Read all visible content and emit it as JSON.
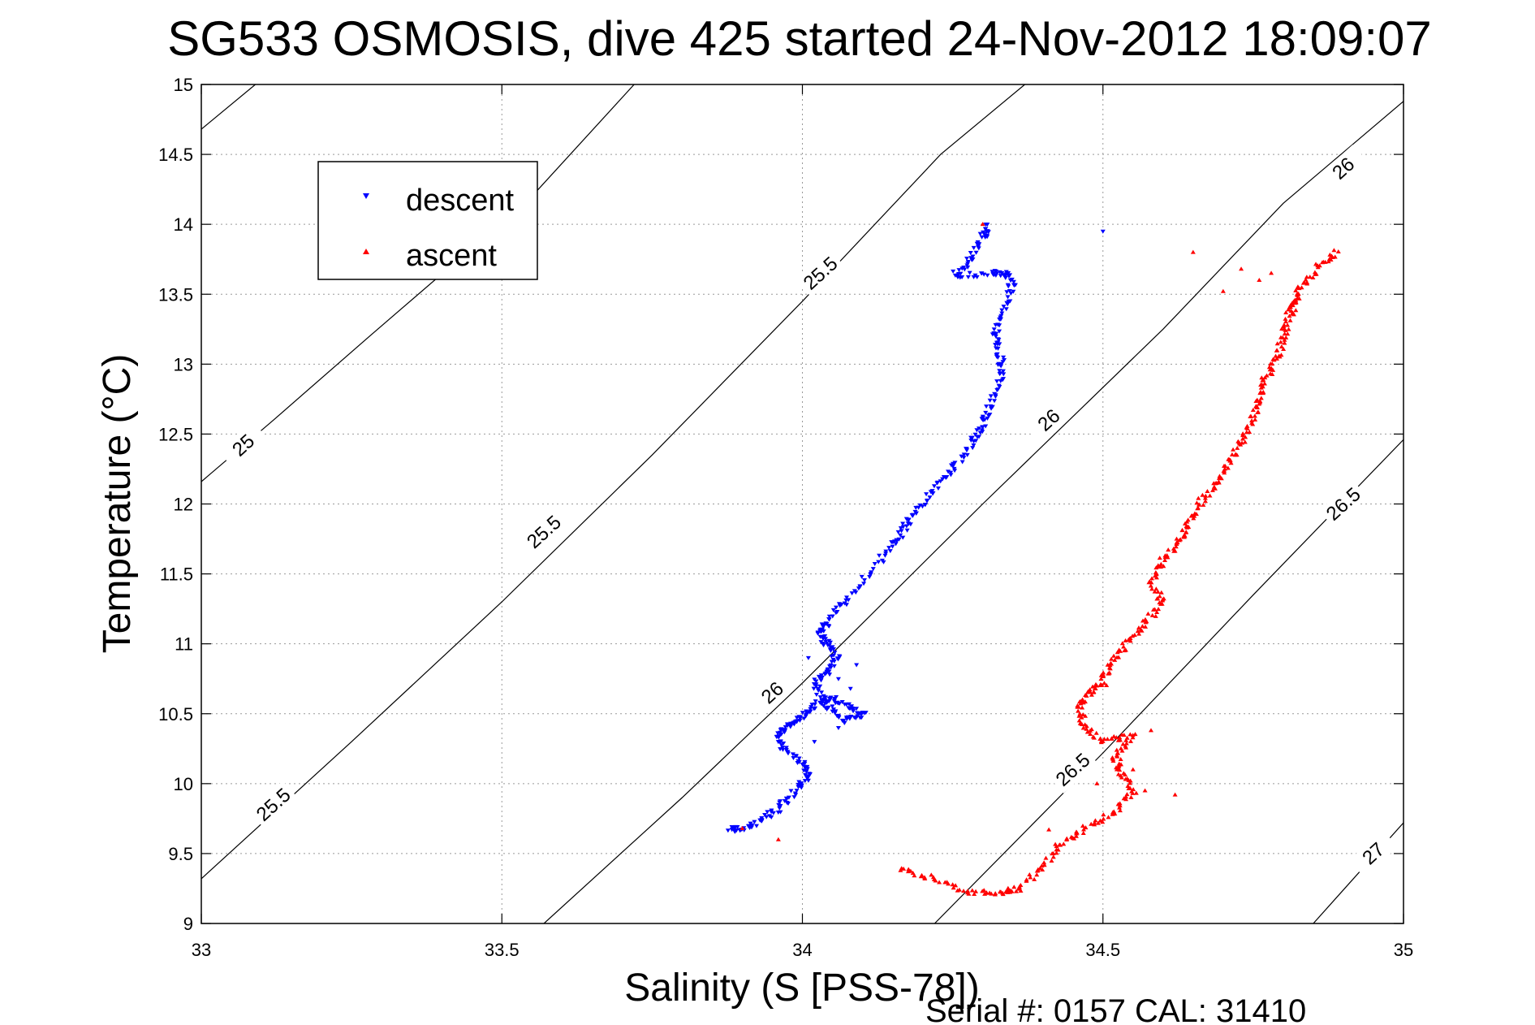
{
  "chart_data": {
    "type": "scatter",
    "title": "SG533 OSMOSIS, dive 425 started 24-Nov-2012 18:09:07",
    "xlabel": "Salinity (S [PSS-78])",
    "ylabel": "Temperature (°C)",
    "xlim": [
      33,
      35
    ],
    "ylim": [
      9,
      15
    ],
    "x_ticks": [
      "33",
      "33.5",
      "34",
      "34.5",
      "35"
    ],
    "y_ticks": [
      "9",
      "9.5",
      "10",
      "10.5",
      "11",
      "11.5",
      "12",
      "12.5",
      "13",
      "13.5",
      "14",
      "14.5",
      "15"
    ],
    "grid": true,
    "legend_position": "top-left",
    "footer": "Serial #: 0157  CAL: 31410",
    "density_contours": [
      {
        "level": "25",
        "points": [
          [
            33.0,
            14.68
          ],
          [
            33.09,
            15.0
          ]
        ],
        "labels": []
      },
      {
        "level": "25",
        "points": [
          [
            33.0,
            12.16
          ],
          [
            33.12,
            12.6
          ],
          [
            33.28,
            13.2
          ],
          [
            33.55,
            14.2
          ],
          [
            33.72,
            15.0
          ]
        ],
        "labels": [
          {
            "text": "25",
            "x": 33.07,
            "y": 12.42
          }
        ]
      },
      {
        "level": "25.5",
        "points": [
          [
            33.0,
            9.32
          ],
          [
            33.25,
            10.3
          ],
          [
            33.5,
            11.3
          ],
          [
            33.75,
            12.35
          ],
          [
            34.0,
            13.45
          ],
          [
            34.23,
            14.5
          ],
          [
            34.37,
            15.0
          ]
        ],
        "labels": [
          {
            "text": "25.5",
            "x": 33.12,
            "y": 9.85
          },
          {
            "text": "25.5",
            "x": 33.57,
            "y": 11.8
          },
          {
            "text": "25.5",
            "x": 34.03,
            "y": 13.65
          }
        ]
      },
      {
        "level": "26",
        "points": [
          [
            33.57,
            9.0
          ],
          [
            33.8,
            9.9
          ],
          [
            34.0,
            10.72
          ],
          [
            34.3,
            12.0
          ],
          [
            34.6,
            13.25
          ],
          [
            34.8,
            14.15
          ],
          [
            35.0,
            14.88
          ]
        ],
        "labels": [
          {
            "text": "26",
            "x": 33.95,
            "y": 10.65
          },
          {
            "text": "26",
            "x": 34.41,
            "y": 12.6
          },
          {
            "text": "26",
            "x": 34.9,
            "y": 14.4
          }
        ]
      },
      {
        "level": "26.5",
        "points": [
          [
            34.22,
            9.0
          ],
          [
            34.5,
            10.22
          ],
          [
            34.75,
            11.35
          ],
          [
            35.0,
            12.46
          ]
        ],
        "labels": [
          {
            "text": "26.5",
            "x": 34.45,
            "y": 10.1
          },
          {
            "text": "26.5",
            "x": 34.9,
            "y": 12.0
          }
        ]
      },
      {
        "level": "27",
        "points": [
          [
            34.85,
            9.0
          ],
          [
            35.0,
            9.72
          ]
        ],
        "labels": [
          {
            "text": "27",
            "x": 34.95,
            "y": 9.5
          }
        ]
      }
    ],
    "series": [
      {
        "name": "descent",
        "color": "#0000ff",
        "marker": "triangle-down",
        "path": [
          [
            33.88,
            9.67
          ],
          [
            33.9,
            9.68
          ],
          [
            33.93,
            9.73
          ],
          [
            33.96,
            9.82
          ],
          [
            33.99,
            9.95
          ],
          [
            34.01,
            10.05
          ],
          [
            34.0,
            10.15
          ],
          [
            33.97,
            10.25
          ],
          [
            33.96,
            10.35
          ],
          [
            33.98,
            10.42
          ],
          [
            34.0,
            10.48
          ],
          [
            34.02,
            10.56
          ],
          [
            34.05,
            10.62
          ],
          [
            34.08,
            10.55
          ],
          [
            34.1,
            10.5
          ],
          [
            34.07,
            10.45
          ],
          [
            34.04,
            10.55
          ],
          [
            34.02,
            10.72
          ],
          [
            34.04,
            10.8
          ],
          [
            34.06,
            10.9
          ],
          [
            34.04,
            11.0
          ],
          [
            34.03,
            11.08
          ],
          [
            34.04,
            11.15
          ],
          [
            34.07,
            11.3
          ],
          [
            34.11,
            11.5
          ],
          [
            34.15,
            11.7
          ],
          [
            34.17,
            11.83
          ],
          [
            34.19,
            11.95
          ],
          [
            34.22,
            12.1
          ],
          [
            34.25,
            12.25
          ],
          [
            34.28,
            12.42
          ],
          [
            34.3,
            12.55
          ],
          [
            34.31,
            12.7
          ],
          [
            34.33,
            12.9
          ],
          [
            34.33,
            13.05
          ],
          [
            34.32,
            13.2
          ],
          [
            34.33,
            13.35
          ],
          [
            34.35,
            13.55
          ],
          [
            34.34,
            13.65
          ],
          [
            34.31,
            13.65
          ],
          [
            34.25,
            13.63
          ],
          [
            34.28,
            13.75
          ],
          [
            34.3,
            13.9
          ],
          [
            34.31,
            14.0
          ]
        ],
        "extra_points": [
          [
            34.5,
            13.95
          ],
          [
            34.06,
            10.75
          ],
          [
            34.09,
            10.85
          ],
          [
            34.03,
            10.62
          ],
          [
            34.06,
            10.4
          ],
          [
            34.02,
            10.3
          ],
          [
            34.08,
            10.68
          ],
          [
            34.01,
            10.9
          ]
        ]
      },
      {
        "name": "ascent",
        "color": "#ff0000",
        "marker": "triangle-up",
        "path": [
          [
            34.16,
            9.4
          ],
          [
            34.22,
            9.32
          ],
          [
            34.28,
            9.22
          ],
          [
            34.33,
            9.22
          ],
          [
            34.36,
            9.25
          ],
          [
            34.4,
            9.4
          ],
          [
            34.43,
            9.57
          ],
          [
            34.47,
            9.68
          ],
          [
            34.52,
            9.8
          ],
          [
            34.55,
            9.95
          ],
          [
            34.53,
            10.08
          ],
          [
            34.52,
            10.2
          ],
          [
            34.55,
            10.35
          ],
          [
            34.5,
            10.3
          ],
          [
            34.47,
            10.4
          ],
          [
            34.46,
            10.55
          ],
          [
            34.48,
            10.65
          ],
          [
            34.5,
            10.72
          ],
          [
            34.51,
            10.85
          ],
          [
            34.54,
            11.0
          ],
          [
            34.57,
            11.15
          ],
          [
            34.6,
            11.3
          ],
          [
            34.58,
            11.45
          ],
          [
            34.6,
            11.6
          ],
          [
            34.63,
            11.75
          ],
          [
            34.64,
            11.85
          ],
          [
            34.66,
            12.0
          ],
          [
            34.69,
            12.15
          ],
          [
            34.71,
            12.3
          ],
          [
            34.73,
            12.45
          ],
          [
            34.75,
            12.6
          ],
          [
            34.76,
            12.75
          ],
          [
            34.77,
            12.9
          ],
          [
            34.79,
            13.05
          ],
          [
            34.8,
            13.2
          ],
          [
            34.81,
            13.35
          ],
          [
            34.82,
            13.45
          ],
          [
            34.83,
            13.55
          ],
          [
            34.86,
            13.7
          ],
          [
            34.89,
            13.82
          ]
        ],
        "extra_points": [
          [
            34.62,
            9.92
          ],
          [
            34.65,
            13.8
          ],
          [
            34.41,
            9.67
          ],
          [
            33.96,
            9.6
          ],
          [
            34.3,
            14.0
          ],
          [
            33.9,
            9.68
          ],
          [
            34.78,
            13.65
          ],
          [
            34.73,
            13.68
          ],
          [
            34.7,
            13.52
          ],
          [
            34.76,
            13.6
          ],
          [
            34.58,
            10.38
          ],
          [
            34.55,
            10.1
          ],
          [
            34.49,
            10.0
          ],
          [
            34.57,
            9.95
          ],
          [
            34.53,
            10.25
          ]
        ]
      }
    ]
  }
}
